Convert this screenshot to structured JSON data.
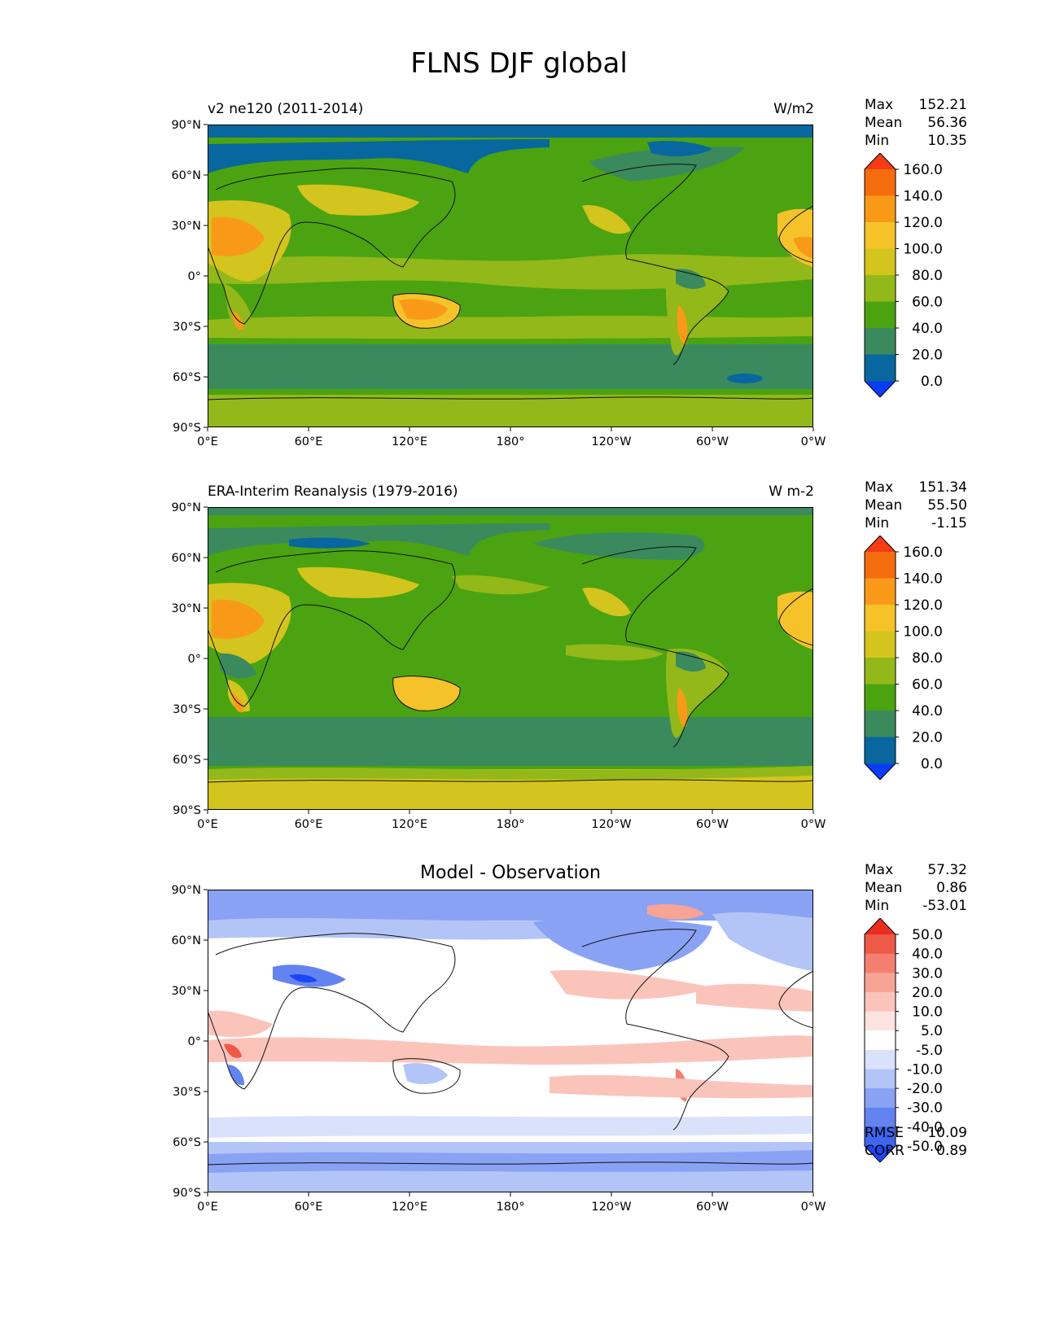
{
  "figure": {
    "title": "FLNS DJF global"
  },
  "axis_ticks": {
    "lat": [
      "90°N",
      "60°N",
      "30°N",
      "0°",
      "30°S",
      "60°S",
      "90°S"
    ],
    "lon": [
      "0°E",
      "60°E",
      "120°E",
      "180°",
      "120°W",
      "60°W",
      "0°W"
    ]
  },
  "colors": {
    "abs_scale": [
      "#0a3cf5",
      "#08679e",
      "#3a8a5e",
      "#4ba311",
      "#93b81a",
      "#d4c41e",
      "#f5c22a",
      "#f89a18",
      "#f56c0e",
      "#f53c14"
    ],
    "diff_scale": [
      "#1c46f5",
      "#3e66f0",
      "#6383f0",
      "#8aa2f4",
      "#b3c4f7",
      "#dae2fb",
      "#ffffff",
      "#fde3df",
      "#fbc4bb",
      "#f7a396",
      "#f47f70",
      "#ef5a48",
      "#e92d1e"
    ]
  },
  "chart_data": [
    {
      "type": "heatmap",
      "title": "v2 ne120 (2011-2014)",
      "units": "W/m2",
      "stats": {
        "max_label": "Max",
        "max": "152.21",
        "mean_label": "Mean",
        "mean": "56.36",
        "min_label": "Min",
        "min": "10.35"
      },
      "colorbar": {
        "levels": [
          "160.0",
          "140.0",
          "120.0",
          "100.0",
          "80.0",
          "60.0",
          "40.0",
          "20.0",
          "0.0"
        ]
      },
      "xlim": [
        0,
        360
      ],
      "ylim": [
        -90,
        90
      ]
    },
    {
      "type": "heatmap",
      "title": "ERA-Interim Reanalysis (1979-2016)",
      "units": "W m-2",
      "stats": {
        "max_label": "Max",
        "max": "151.34",
        "mean_label": "Mean",
        "mean": "55.50",
        "min_label": "Min",
        "min": "-1.15"
      },
      "colorbar": {
        "levels": [
          "160.0",
          "140.0",
          "120.0",
          "100.0",
          "80.0",
          "60.0",
          "40.0",
          "20.0",
          "0.0"
        ]
      },
      "xlim": [
        0,
        360
      ],
      "ylim": [
        -90,
        90
      ]
    },
    {
      "type": "heatmap",
      "title": "Model - Observation",
      "stats": {
        "max_label": "Max",
        "max": "57.32",
        "mean_label": "Mean",
        "mean": "0.86",
        "min_label": "Min",
        "min": "-53.01"
      },
      "colorbar": {
        "levels": [
          "50.0",
          "40.0",
          "30.0",
          "20.0",
          "10.0",
          "5.0",
          "-5.0",
          "-10.0",
          "-20.0",
          "-30.0",
          "-40.0",
          "-50.0"
        ]
      },
      "metrics": {
        "rmse_label": "RMSE",
        "rmse": "10.09",
        "corr_label": "CORR",
        "corr": "0.89"
      },
      "xlim": [
        0,
        360
      ],
      "ylim": [
        -90,
        90
      ]
    }
  ]
}
